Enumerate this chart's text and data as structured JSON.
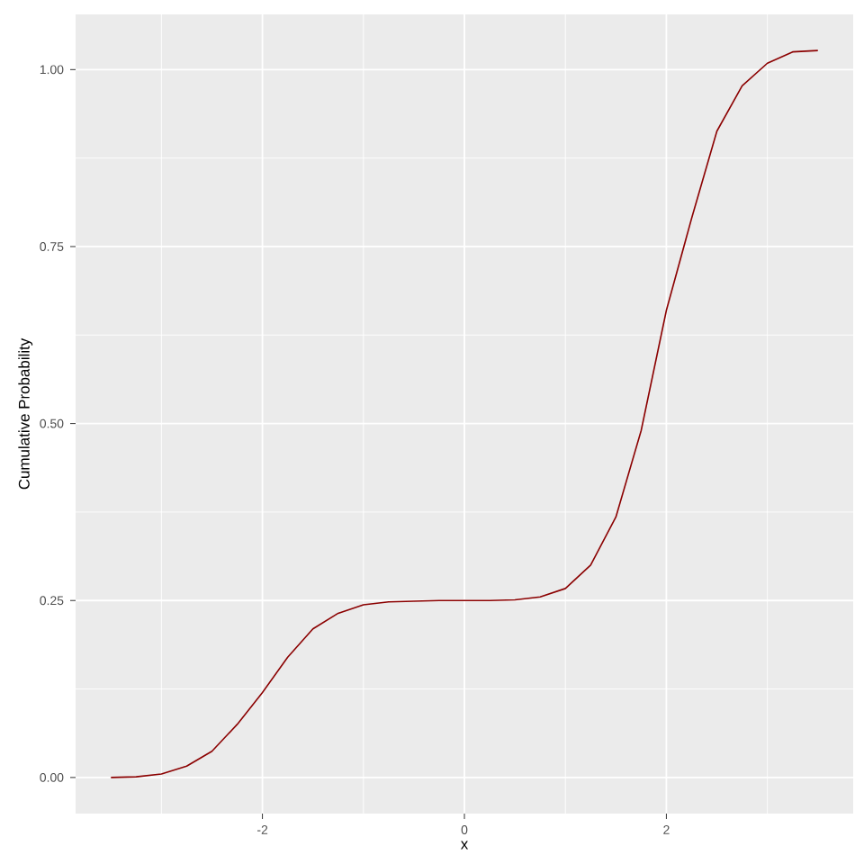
{
  "chart_data": {
    "type": "line",
    "xlabel": "x",
    "ylabel": "Cumulative Probability",
    "x": [
      -3.5,
      -3.25,
      -3.0,
      -2.75,
      -2.5,
      -2.25,
      -2.0,
      -1.75,
      -1.5,
      -1.25,
      -1.0,
      -0.75,
      -0.5,
      -0.25,
      0.0,
      0.25,
      0.5,
      0.75,
      1.0,
      1.25,
      1.5,
      1.75,
      2.0,
      2.25,
      2.5,
      2.75,
      3.0,
      3.25,
      3.5
    ],
    "series": [
      {
        "color": "#8b0000",
        "values": [
          0.0,
          0.001,
          0.005,
          0.016,
          0.037,
          0.075,
          0.12,
          0.17,
          0.21,
          0.232,
          0.244,
          0.248,
          0.249,
          0.25,
          0.25,
          0.25,
          0.251,
          0.255,
          0.267,
          0.3,
          0.368,
          0.49,
          0.66,
          0.79,
          0.913,
          0.977,
          1.009,
          1.025,
          1.027
        ]
      }
    ],
    "xlim": [
      -3.85,
      3.85
    ],
    "ylim": [
      -0.051,
      1.078
    ],
    "xticks": [
      -2,
      0,
      2
    ],
    "yticks": [
      {
        "value": 0,
        "label": "0.00"
      },
      {
        "value": 0.25,
        "label": "0.25"
      },
      {
        "value": 0.5,
        "label": "0.50"
      },
      {
        "value": 0.75,
        "label": "0.75"
      },
      {
        "value": 1,
        "label": "1.00"
      }
    ],
    "grid": true,
    "line_style": "solid",
    "marker": "none"
  }
}
